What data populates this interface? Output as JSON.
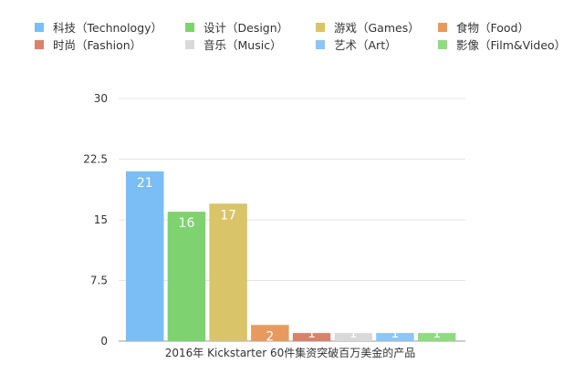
{
  "chart_data": {
    "type": "bar",
    "title": "",
    "xlabel": "2016年 Kickstarter 60件集资突破百万美金的产品",
    "ylabel": "",
    "ylim": [
      0,
      30
    ],
    "yticks": [
      "0",
      "7.5",
      "15",
      "22.5",
      "30"
    ],
    "grid": true,
    "legend_position": "top",
    "categories": [
      "科技（Technology）",
      "设计（Design）",
      "游戏（Games）",
      "食物（Food）",
      "时尚（Fashion）",
      "音乐（Music）",
      "艺术（Art）",
      "影像（Film&Video）"
    ],
    "values": [
      21,
      16,
      17,
      2,
      1,
      1,
      1,
      1
    ],
    "data_labels": [
      "21",
      "16",
      "17",
      "2",
      "1",
      "1",
      "1",
      "1"
    ],
    "colors": [
      "#7bbdf5",
      "#7ed26f",
      "#d9c46a",
      "#e89a5e",
      "#d9826b",
      "#d9d9d9",
      "#8cc5f7",
      "#8fdc80"
    ]
  },
  "legend": {
    "items": [
      {
        "label": "科技（Technology）",
        "color": "#7bbdf5"
      },
      {
        "label": "设计（Design）",
        "color": "#7ed26f"
      },
      {
        "label": "游戏（Games）",
        "color": "#d9c46a"
      },
      {
        "label": "食物（Food）",
        "color": "#e89a5e"
      },
      {
        "label": "时尚（Fashion）",
        "color": "#d9826b"
      },
      {
        "label": "音乐（Music）",
        "color": "#d9d9d9"
      },
      {
        "label": "艺术（Art）",
        "color": "#8cc5f7"
      },
      {
        "label": "影像（Film&Video）",
        "color": "#8fdc80"
      }
    ]
  }
}
